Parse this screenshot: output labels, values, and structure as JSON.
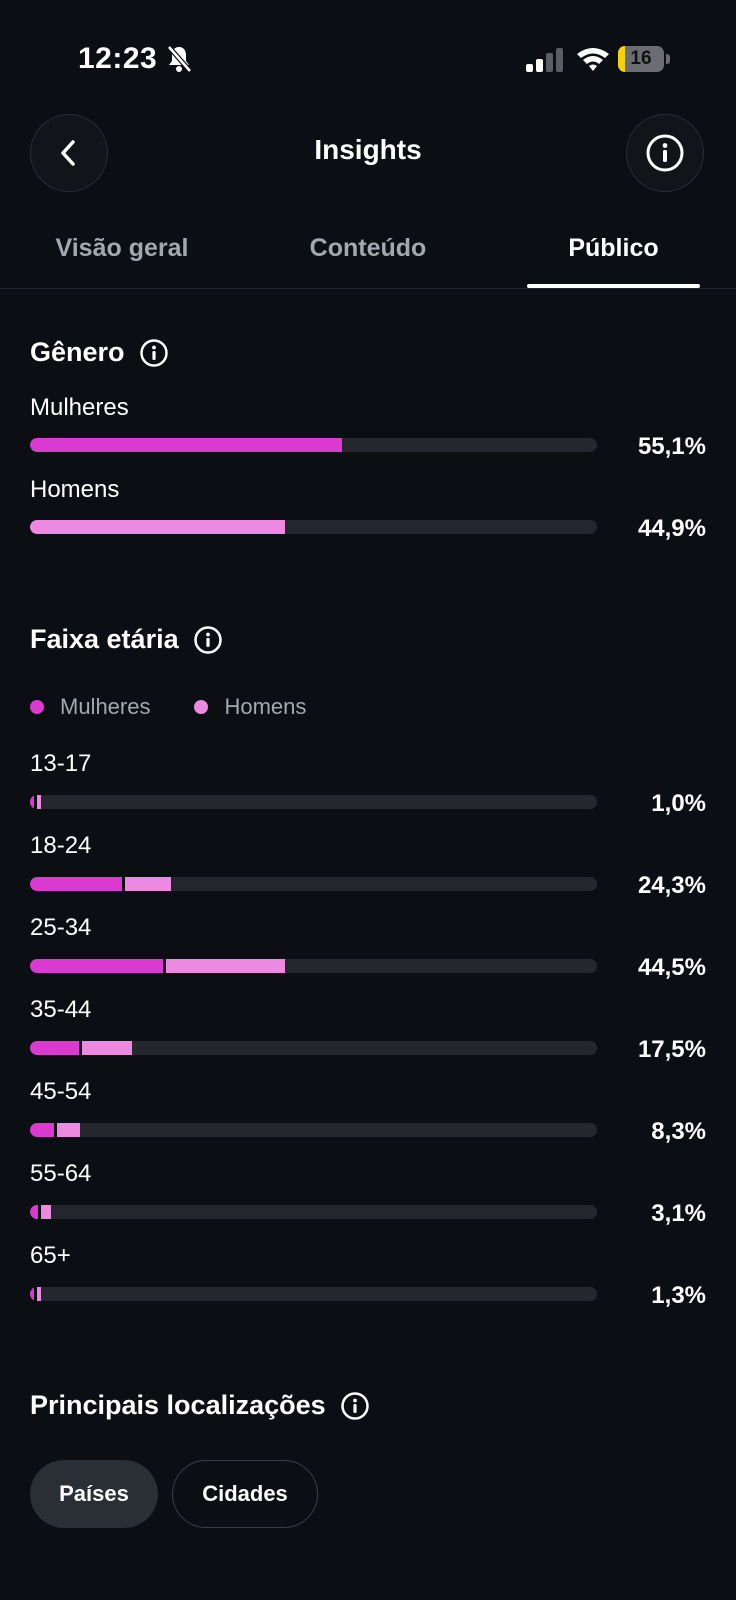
{
  "status_bar": {
    "time": "12:23",
    "battery_level": "16",
    "battery_fraction": 0.16,
    "icons": [
      "bell-slash-icon",
      "cellular-signal-icon",
      "wifi-icon",
      "battery-icon"
    ]
  },
  "header": {
    "title": "Insights",
    "back_icon": "chevron-left-icon",
    "info_icon": "info-icon"
  },
  "tabs": [
    {
      "label": "Visão geral",
      "active": false
    },
    {
      "label": "Conteúdo",
      "active": false
    },
    {
      "label": "Público",
      "active": true
    }
  ],
  "colors": {
    "women": "#da3ad0",
    "men": "#ec8ae2",
    "track": "#24272e",
    "background": "#0b0e12"
  },
  "gender": {
    "title": "Gênero",
    "rows": [
      {
        "label": "Mulheres",
        "value": "55,1%",
        "fraction": 0.551,
        "series": "women"
      },
      {
        "label": "Homens",
        "value": "44,9%",
        "fraction": 0.449,
        "series": "men"
      }
    ]
  },
  "age": {
    "title": "Faixa etária",
    "legend": [
      {
        "label": "Mulheres",
        "color": "#da3ad0"
      },
      {
        "label": "Homens",
        "color": "#ec8ae2"
      }
    ],
    "rows": [
      {
        "label": "13-17",
        "value": "1,0%",
        "women": 0.6,
        "men": 0.4
      },
      {
        "label": "18-24",
        "value": "24,3%",
        "women": 16.3,
        "men": 8.0
      },
      {
        "label": "25-34",
        "value": "44,5%",
        "women": 23.5,
        "men": 21.0
      },
      {
        "label": "35-44",
        "value": "17,5%",
        "women": 8.7,
        "men": 8.8
      },
      {
        "label": "45-54",
        "value": "8,3%",
        "women": 4.2,
        "men": 4.1
      },
      {
        "label": "55-64",
        "value": "3,1%",
        "women": 1.4,
        "men": 1.7
      },
      {
        "label": "65+",
        "value": "1,3%",
        "women": 0.7,
        "men": 0.6
      }
    ]
  },
  "locations": {
    "title": "Principais localizações",
    "chips": [
      {
        "label": "Países",
        "selected": true
      },
      {
        "label": "Cidades",
        "selected": false
      }
    ]
  }
}
